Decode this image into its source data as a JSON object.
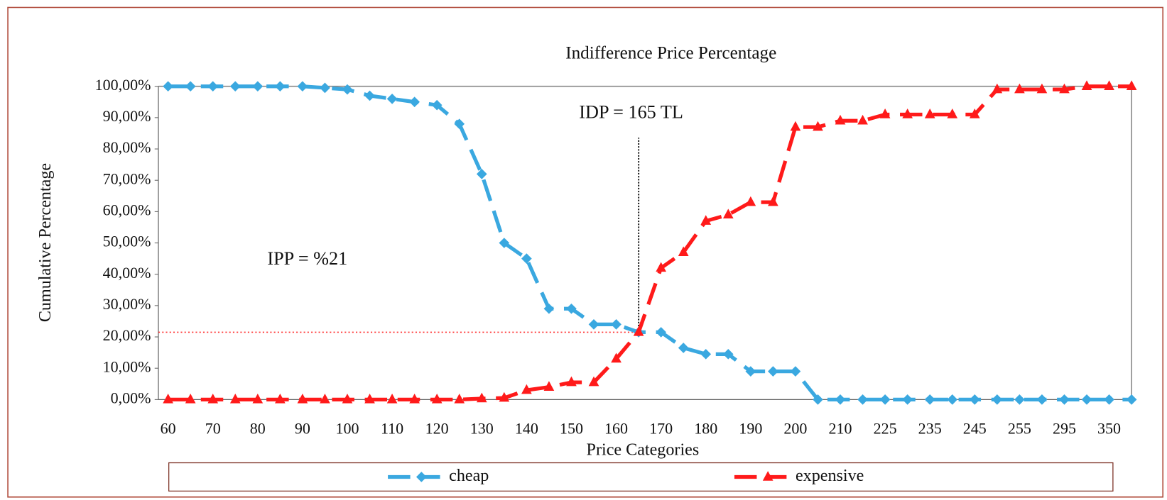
{
  "chart_data": {
    "type": "line",
    "title": "Indifference Price Percentage",
    "x_label": "Price Categories",
    "y_label": "Cumulative Percentage",
    "categories": [
      "60",
      null,
      "70",
      null,
      "80",
      null,
      "90",
      null,
      "100",
      null,
      "110",
      null,
      "120",
      null,
      "130",
      null,
      "140",
      null,
      "150",
      null,
      "160",
      null,
      "170",
      null,
      "180",
      null,
      "190",
      null,
      "200",
      null,
      "210",
      null,
      "225",
      null,
      "235",
      null,
      "245",
      null,
      "255",
      null,
      "295",
      null,
      "350",
      null
    ],
    "series": [
      {
        "name": "cheap",
        "color": "#3aa8e0",
        "marker": "diamond",
        "values": [
          100,
          100,
          100,
          100,
          100,
          100,
          100,
          99.5,
          99,
          97,
          96,
          95,
          94,
          88,
          72,
          50,
          45,
          29,
          29,
          24,
          24,
          21.5,
          21.5,
          16.5,
          14.5,
          14.5,
          9,
          9,
          9,
          0,
          0,
          0,
          0,
          0,
          0,
          0,
          0,
          0,
          0,
          0,
          0,
          0,
          0,
          0
        ]
      },
      {
        "name": "expensive",
        "color": "#ff1a1a",
        "marker": "triangle",
        "values": [
          0,
          0,
          0,
          0,
          0,
          0,
          0,
          0,
          0,
          0,
          0,
          0,
          0,
          0,
          0.3,
          0.5,
          3,
          4,
          5.5,
          5.5,
          13,
          21.5,
          42,
          47,
          57,
          59,
          63,
          63,
          87,
          87,
          89,
          89,
          91,
          91,
          91,
          91,
          91,
          99,
          99,
          99,
          99,
          100,
          100,
          100
        ]
      }
    ],
    "ylim": [
      0,
      100
    ],
    "yticks": [
      {
        "value": 0,
        "label": "0,00%"
      },
      {
        "value": 10,
        "label": "10,00%"
      },
      {
        "value": 20,
        "label": "20,00%"
      },
      {
        "value": 30,
        "label": "30,00%"
      },
      {
        "value": 40,
        "label": "40,00%"
      },
      {
        "value": 50,
        "label": "50,00%"
      },
      {
        "value": 60,
        "label": "60,00%"
      },
      {
        "value": 70,
        "label": "70,00%"
      },
      {
        "value": 80,
        "label": "80,00%"
      },
      {
        "value": 90,
        "label": "90,00%"
      },
      {
        "value": 100,
        "label": "100,00%"
      }
    ],
    "annotations": [
      {
        "text": "IDP = 165 TL"
      },
      {
        "text": "IPP = %21"
      }
    ],
    "grid": false,
    "legend": "bottom"
  }
}
